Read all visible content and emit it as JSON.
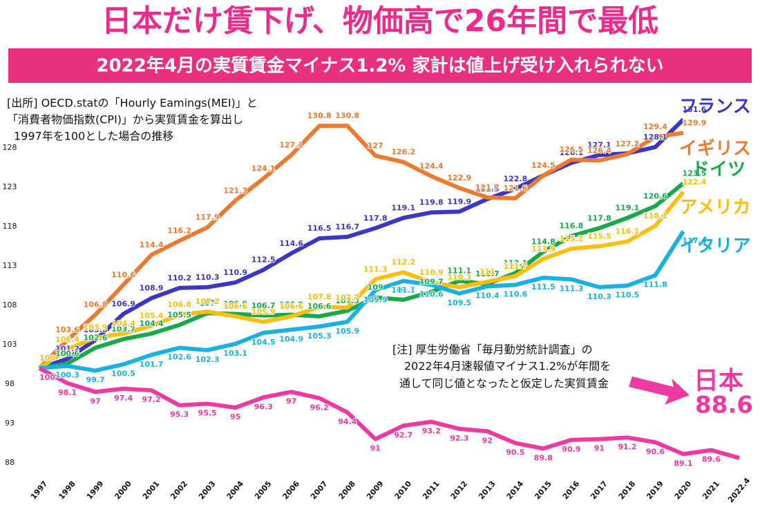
{
  "chart_data": {
    "type": "line",
    "title": "日本だけ賃下げ、物価高で26年間で最低",
    "subtitle": "2022年4月の実質賃金マイナス1.2% 家計は値上げ受け入れられない",
    "source_note": [
      "[出所] OECD.statの「Hourly Eamings(MEI)」と",
      "「消費者物価指数(CPI)」から実質賃金を算出し",
      "1997年を100とした場合の推移"
    ],
    "note": [
      "[注] 厚生労働省「毎月勤労統計調査」の",
      "2022年4月速報値マイナス1.2%が年間を",
      "通して同じ値となったと仮定した実質賃金"
    ],
    "categories": [
      "1997",
      "1998",
      "1999",
      "2000",
      "2001",
      "2002",
      "2003",
      "2004",
      "2005",
      "2006",
      "2007",
      "2008",
      "2009",
      "2010",
      "2011",
      "2012",
      "2013",
      "2014",
      "2015",
      "2016",
      "2017",
      "2018",
      "2019",
      "2020",
      "2021",
      "2022.4"
    ],
    "ylim": [
      86.5,
      134.5
    ],
    "yticks": [
      88,
      93,
      98,
      103,
      108,
      113,
      118,
      123,
      128
    ],
    "series": [
      {
        "name": "フランス",
        "color": "#3b37c2",
        "values": [
          100,
          101.2,
          103.6,
          106.9,
          108.9,
          110.2,
          110.3,
          110.9,
          112.5,
          114.6,
          116.5,
          116.7,
          117.8,
          119.1,
          119.8,
          119.9,
          121.5,
          122.8,
          124.5,
          126.1,
          127.1,
          127.3,
          128.1,
          131.6,
          null,
          null
        ]
      },
      {
        "name": "イギリス",
        "color": "#ec7a30",
        "values": [
          100,
          103.6,
          106.8,
          110.6,
          114.4,
          116.2,
          117.9,
          121.3,
          124.1,
          127.1,
          130.8,
          130.8,
          127.0,
          126.2,
          124.4,
          122.9,
          121.7,
          121.6,
          124.5,
          126.5,
          126.4,
          127.2,
          129.4,
          129.9,
          null,
          null
        ]
      },
      {
        "name": "ドイツ",
        "color": "#1aa84b",
        "values": [
          100,
          100.6,
          102.6,
          103.7,
          104.4,
          105.5,
          107.0,
          106.9,
          106.7,
          106.8,
          106.6,
          107.3,
          109.0,
          108.7,
          109.7,
          111.1,
          110.7,
          112.1,
          114.8,
          116.8,
          117.8,
          119.1,
          120.6,
          123.5,
          null,
          null
        ]
      },
      {
        "name": "アメリカ",
        "color": "#fbbf12",
        "values": [
          100,
          102.4,
          103.9,
          104.4,
          105.4,
          106.8,
          107.2,
          106.6,
          105.9,
          106.6,
          107.8,
          107.7,
          111.3,
          112.2,
          110.9,
          110.3,
          111.0,
          111.7,
          113.9,
          115.2,
          115.5,
          116.1,
          118.1,
          122.4,
          null,
          null
        ]
      },
      {
        "name": "イタリア",
        "color": "#1ab0e0",
        "values": [
          100,
          100.3,
          99.7,
          100.5,
          101.7,
          102.6,
          102.3,
          103.1,
          104.5,
          104.9,
          105.3,
          105.9,
          109.9,
          111.1,
          110.6,
          109.5,
          110.4,
          110.6,
          111.5,
          111.3,
          110.3,
          110.5,
          111.8,
          117.4,
          null,
          null
        ]
      },
      {
        "name": "日本",
        "color": "#ee3aa0",
        "values": [
          100,
          98.1,
          97.0,
          97.4,
          97.2,
          95.3,
          95.5,
          95.0,
          96.3,
          97.0,
          96.2,
          94.4,
          91.0,
          92.7,
          93.2,
          92.3,
          92.0,
          90.5,
          89.8,
          90.9,
          91.0,
          91.2,
          90.6,
          89.1,
          89.6,
          88.6
        ]
      }
    ]
  }
}
